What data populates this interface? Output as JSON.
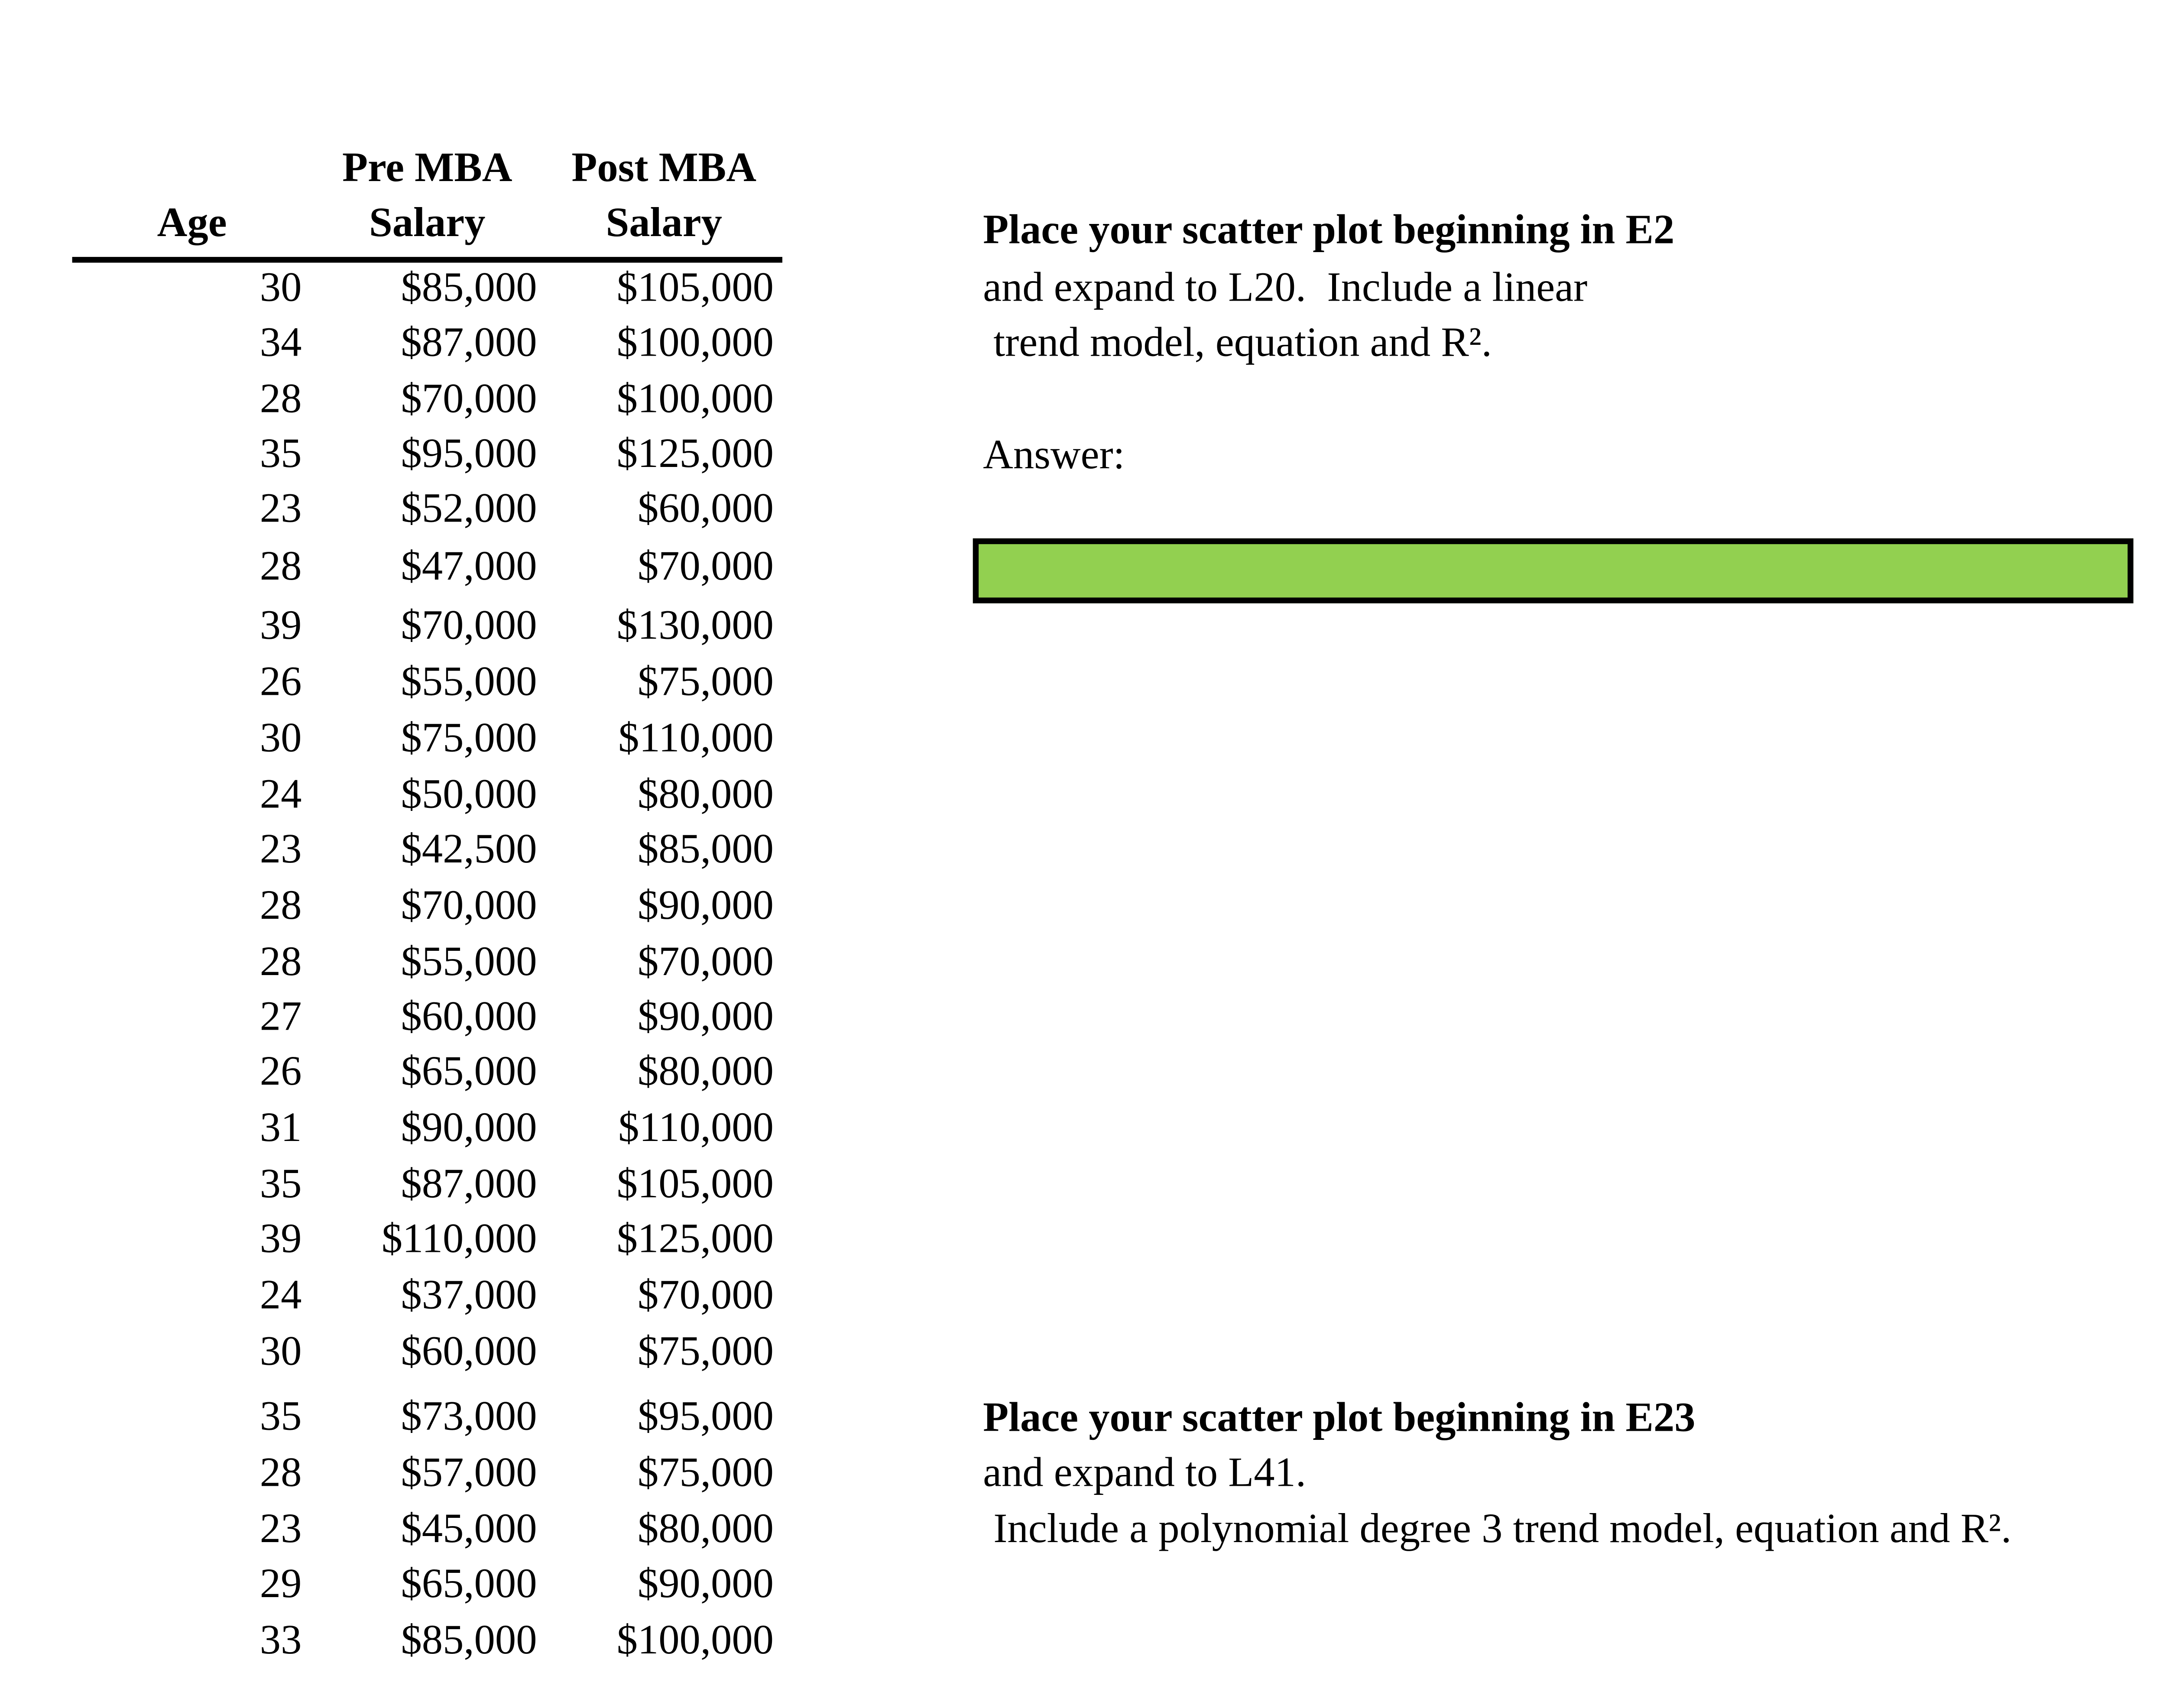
{
  "table": {
    "headers": {
      "age": "Age",
      "pre_line1": "Pre MBA",
      "pre_line2": "Salary",
      "post_line1": "Post MBA",
      "post_line2": "Salary"
    },
    "rows": [
      {
        "age": "30",
        "pre": "$85,000",
        "post": "$105,000"
      },
      {
        "age": "34",
        "pre": "$87,000",
        "post": "$100,000"
      },
      {
        "age": "28",
        "pre": "$70,000",
        "post": "$100,000"
      },
      {
        "age": "35",
        "pre": "$95,000",
        "post": "$125,000"
      },
      {
        "age": "23",
        "pre": "$52,000",
        "post": "$60,000"
      },
      {
        "age": "28",
        "pre": "$47,000",
        "post": "$70,000"
      },
      {
        "age": "39",
        "pre": "$70,000",
        "post": "$130,000"
      },
      {
        "age": "26",
        "pre": "$55,000",
        "post": "$75,000"
      },
      {
        "age": "30",
        "pre": "$75,000",
        "post": "$110,000"
      },
      {
        "age": "24",
        "pre": "$50,000",
        "post": "$80,000"
      },
      {
        "age": "23",
        "pre": "$42,500",
        "post": "$85,000"
      },
      {
        "age": "28",
        "pre": "$70,000",
        "post": "$90,000"
      },
      {
        "age": "28",
        "pre": "$55,000",
        "post": "$70,000"
      },
      {
        "age": "27",
        "pre": "$60,000",
        "post": "$90,000"
      },
      {
        "age": "26",
        "pre": "$65,000",
        "post": "$80,000"
      },
      {
        "age": "31",
        "pre": "$90,000",
        "post": "$110,000"
      },
      {
        "age": "35",
        "pre": "$87,000",
        "post": "$105,000"
      },
      {
        "age": "39",
        "pre": "$110,000",
        "post": "$125,000"
      },
      {
        "age": "24",
        "pre": "$37,000",
        "post": "$70,000"
      },
      {
        "age": "30",
        "pre": "$60,000",
        "post": "$75,000"
      },
      {
        "age": "35",
        "pre": "$73,000",
        "post": "$95,000"
      },
      {
        "age": "28",
        "pre": "$57,000",
        "post": "$75,000"
      },
      {
        "age": "23",
        "pre": "$45,000",
        "post": "$80,000"
      },
      {
        "age": "29",
        "pre": "$65,000",
        "post": "$90,000"
      },
      {
        "age": "33",
        "pre": "$85,000",
        "post": "$100,000"
      }
    ]
  },
  "instructions1": {
    "title": "Place your scatter plot beginning in E2",
    "line2": "and expand to L20.  Include a linear",
    "line3": " trend model, equation and R².",
    "answer_label": "Answer:"
  },
  "answer_box": {
    "value": "",
    "fill_color": "#92d050"
  },
  "instructions2": {
    "title": "Place your scatter plot beginning in E23",
    "line2": "and expand to L41.",
    "line3": " Include a polynomial degree 3 trend model, equation and R²."
  }
}
